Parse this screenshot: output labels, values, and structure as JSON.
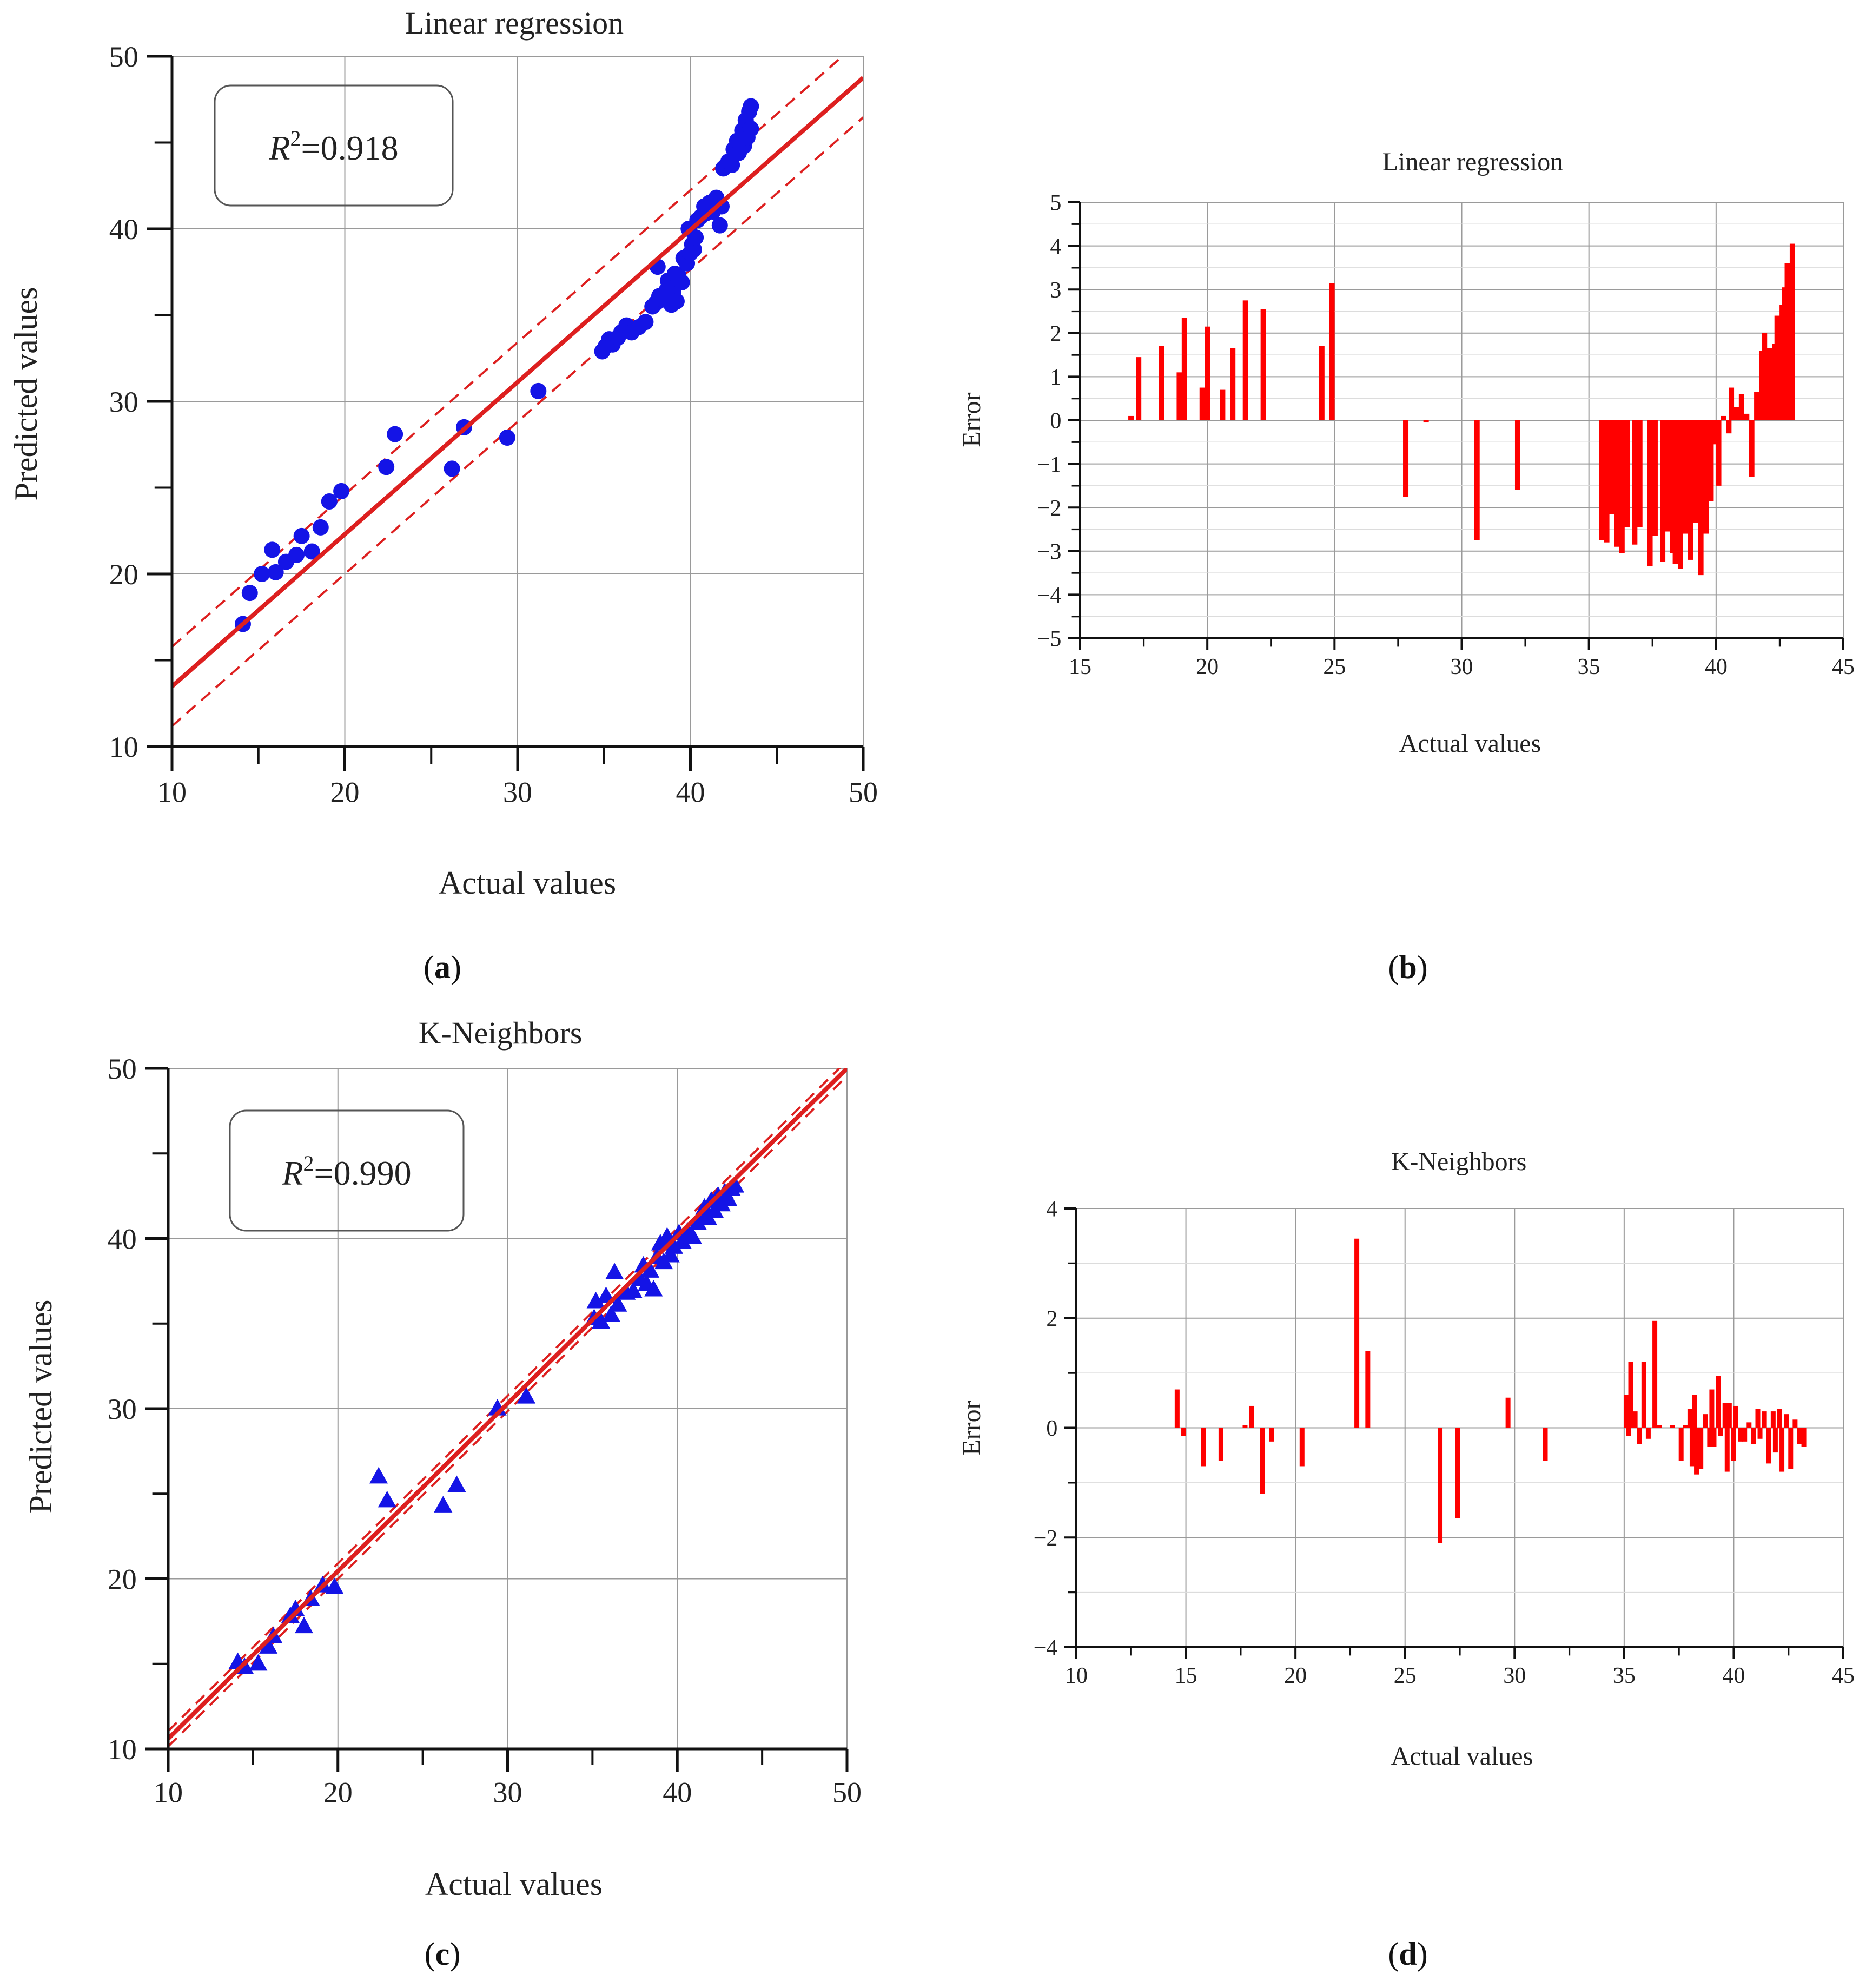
{
  "colors": {
    "axis": "#111111",
    "grid": "#9a9a9a",
    "grid_light": "#dcdcdc",
    "fit": "#dd1f1f",
    "band": "#dd1f1f",
    "point": "#1414e6",
    "bar": "#ff0000",
    "box": "#555555"
  },
  "chart_data": [
    {
      "panel": "a",
      "type": "scatter",
      "marker": "circle",
      "title": "Linear regression",
      "xlabel": "Actual values",
      "ylabel": "Predicted values",
      "xlim": [
        10,
        50
      ],
      "ylim": [
        10,
        50
      ],
      "xticks": [
        10,
        20,
        30,
        40,
        50
      ],
      "yticks": [
        10,
        20,
        30,
        40,
        50
      ],
      "grid": true,
      "r2": {
        "prefix": "R",
        "sup": "2",
        "value": "=0.918"
      },
      "fit_line": {
        "slope": 0.882,
        "intercept": 4.66
      },
      "band_offset": 2.3,
      "points": [
        [
          14.1,
          17.1
        ],
        [
          14.5,
          18.9
        ],
        [
          15.2,
          20.0
        ],
        [
          15.8,
          21.4
        ],
        [
          16.0,
          20.1
        ],
        [
          16.6,
          20.7
        ],
        [
          17.2,
          21.1
        ],
        [
          17.5,
          22.2
        ],
        [
          18.1,
          21.3
        ],
        [
          18.6,
          22.7
        ],
        [
          19.1,
          24.2
        ],
        [
          19.8,
          24.8
        ],
        [
          22.4,
          26.2
        ],
        [
          22.9,
          28.1
        ],
        [
          26.2,
          26.1
        ],
        [
          26.9,
          28.5
        ],
        [
          29.4,
          27.9
        ],
        [
          31.2,
          30.6
        ],
        [
          34.9,
          32.9
        ],
        [
          35.1,
          33.2
        ],
        [
          35.3,
          33.6
        ],
        [
          35.5,
          33.3
        ],
        [
          35.8,
          33.7
        ],
        [
          36.0,
          34.0
        ],
        [
          36.3,
          34.4
        ],
        [
          36.6,
          34.0
        ],
        [
          37.0,
          34.3
        ],
        [
          37.4,
          34.6
        ],
        [
          37.8,
          35.5
        ],
        [
          38.0,
          35.7
        ],
        [
          38.1,
          37.8
        ],
        [
          38.2,
          36.1
        ],
        [
          38.4,
          35.9
        ],
        [
          38.6,
          36.4
        ],
        [
          38.7,
          37.0
        ],
        [
          38.9,
          35.6
        ],
        [
          39.0,
          36.3
        ],
        [
          39.1,
          37.4
        ],
        [
          39.2,
          35.8
        ],
        [
          39.3,
          37.3
        ],
        [
          39.5,
          36.9
        ],
        [
          39.6,
          38.3
        ],
        [
          39.8,
          38.0
        ],
        [
          39.9,
          40.0
        ],
        [
          40.0,
          38.6
        ],
        [
          40.1,
          39.1
        ],
        [
          40.2,
          38.8
        ],
        [
          40.3,
          39.5
        ],
        [
          40.4,
          40.5
        ],
        [
          40.6,
          40.7
        ],
        [
          40.8,
          41.3
        ],
        [
          40.9,
          40.9
        ],
        [
          41.1,
          41.5
        ],
        [
          41.3,
          41.0
        ],
        [
          41.5,
          41.8
        ],
        [
          41.7,
          40.2
        ],
        [
          41.8,
          41.3
        ],
        [
          41.9,
          43.5
        ],
        [
          42.0,
          43.6
        ],
        [
          42.2,
          43.9
        ],
        [
          42.4,
          43.7
        ],
        [
          42.5,
          44.6
        ],
        [
          42.7,
          45.1
        ],
        [
          42.8,
          44.4
        ],
        [
          43.0,
          45.7
        ],
        [
          43.1,
          44.8
        ],
        [
          43.2,
          46.3
        ],
        [
          43.3,
          45.3
        ],
        [
          43.4,
          46.8
        ],
        [
          43.5,
          47.1
        ],
        [
          43.5,
          45.8
        ]
      ]
    },
    {
      "panel": "b",
      "type": "bar",
      "title": "Linear regression",
      "xlabel": "Actual values",
      "ylabel": "Error",
      "xlim": [
        15,
        45
      ],
      "ylim": [
        -5,
        5
      ],
      "xticks": [
        15,
        20,
        25,
        30,
        35,
        40,
        45
      ],
      "yticks": [
        5,
        4,
        3,
        2,
        1,
        0,
        -1,
        -2,
        -3,
        -4,
        -5
      ],
      "grid": true,
      "bars": [
        [
          17.0,
          0.1
        ],
        [
          17.3,
          1.45
        ],
        [
          18.2,
          1.7
        ],
        [
          18.9,
          1.1
        ],
        [
          19.1,
          2.35
        ],
        [
          19.8,
          0.75
        ],
        [
          20.0,
          2.15
        ],
        [
          20.6,
          0.7
        ],
        [
          21.0,
          1.65
        ],
        [
          21.5,
          2.75
        ],
        [
          22.2,
          2.55
        ],
        [
          24.5,
          1.7
        ],
        [
          24.9,
          3.15
        ],
        [
          27.8,
          -1.75
        ],
        [
          28.6,
          -0.05
        ],
        [
          30.6,
          -2.75
        ],
        [
          32.2,
          -1.6
        ],
        [
          35.5,
          -2.75
        ],
        [
          35.7,
          -2.8
        ],
        [
          35.9,
          -2.15
        ],
        [
          36.1,
          -2.9
        ],
        [
          36.3,
          -3.05
        ],
        [
          36.5,
          -2.45
        ],
        [
          36.8,
          -2.85
        ],
        [
          37.0,
          -2.45
        ],
        [
          37.4,
          -3.35
        ],
        [
          37.6,
          -2.65
        ],
        [
          37.9,
          -3.25
        ],
        [
          38.1,
          -2.55
        ],
        [
          38.3,
          -3.05
        ],
        [
          38.4,
          -3.3
        ],
        [
          38.6,
          -3.4
        ],
        [
          38.8,
          -2.6
        ],
        [
          39.0,
          -3.2
        ],
        [
          39.2,
          -2.35
        ],
        [
          39.4,
          -3.55
        ],
        [
          39.6,
          -2.6
        ],
        [
          39.8,
          -1.85
        ],
        [
          39.9,
          -0.55
        ],
        [
          40.1,
          -1.5
        ],
        [
          40.3,
          0.1
        ],
        [
          40.5,
          -0.3
        ],
        [
          40.6,
          0.75
        ],
        [
          40.8,
          0.3
        ],
        [
          41.0,
          0.6
        ],
        [
          41.2,
          0.15
        ],
        [
          41.4,
          -1.3
        ],
        [
          41.6,
          0.65
        ],
        [
          41.8,
          1.6
        ],
        [
          41.9,
          2.0
        ],
        [
          42.0,
          1.55
        ],
        [
          42.1,
          1.65
        ],
        [
          42.3,
          1.75
        ],
        [
          42.4,
          2.4
        ],
        [
          42.5,
          1.8
        ],
        [
          42.6,
          2.65
        ],
        [
          42.7,
          3.05
        ],
        [
          42.8,
          3.6
        ],
        [
          42.9,
          3.05
        ],
        [
          43.0,
          4.05
        ]
      ]
    },
    {
      "panel": "c",
      "type": "scatter",
      "marker": "triangle",
      "title": "K-Neighbors",
      "xlabel": "Actual values",
      "ylabel": "Predicted values",
      "xlim": [
        10,
        50
      ],
      "ylim": [
        10,
        50
      ],
      "xticks": [
        10,
        20,
        30,
        40,
        50
      ],
      "yticks": [
        10,
        20,
        30,
        40,
        50
      ],
      "grid": true,
      "r2": {
        "prefix": "R",
        "sup": "2",
        "value": "=0.990"
      },
      "fit_line": {
        "slope": 0.985,
        "intercept": 0.75
      },
      "band_offset": 0.45,
      "points": [
        [
          14.1,
          15.1
        ],
        [
          14.5,
          14.8
        ],
        [
          15.3,
          15.0
        ],
        [
          15.9,
          16.0
        ],
        [
          16.2,
          16.6
        ],
        [
          17.2,
          17.8
        ],
        [
          17.5,
          18.2
        ],
        [
          18.0,
          17.2
        ],
        [
          18.4,
          18.8
        ],
        [
          19.1,
          19.6
        ],
        [
          19.8,
          19.5
        ],
        [
          22.4,
          26.0
        ],
        [
          22.9,
          24.6
        ],
        [
          26.2,
          24.3
        ],
        [
          27.0,
          25.5
        ],
        [
          29.4,
          30.0
        ],
        [
          31.1,
          30.7
        ],
        [
          35.1,
          35.3
        ],
        [
          35.2,
          36.3
        ],
        [
          35.5,
          35.1
        ],
        [
          35.8,
          36.6
        ],
        [
          36.1,
          35.5
        ],
        [
          36.3,
          38.0
        ],
        [
          36.5,
          36.1
        ],
        [
          37.0,
          36.8
        ],
        [
          37.4,
          36.9
        ],
        [
          37.8,
          37.6
        ],
        [
          38.0,
          38.4
        ],
        [
          38.2,
          37.3
        ],
        [
          38.4,
          38.1
        ],
        [
          38.6,
          37.0
        ],
        [
          38.8,
          38.9
        ],
        [
          39.0,
          39.7
        ],
        [
          39.2,
          38.6
        ],
        [
          39.4,
          40.1
        ],
        [
          39.6,
          39.0
        ],
        [
          39.8,
          39.5
        ],
        [
          40.1,
          40.3
        ],
        [
          40.3,
          39.8
        ],
        [
          40.6,
          40.4
        ],
        [
          40.9,
          40.1
        ],
        [
          41.2,
          40.9
        ],
        [
          41.4,
          41.3
        ],
        [
          41.6,
          41.8
        ],
        [
          41.8,
          41.2
        ],
        [
          42.0,
          42.2
        ],
        [
          42.2,
          41.6
        ],
        [
          42.4,
          42.5
        ],
        [
          42.6,
          42.0
        ],
        [
          42.8,
          42.7
        ],
        [
          43.0,
          42.3
        ],
        [
          43.2,
          42.9
        ],
        [
          43.4,
          43.1
        ]
      ]
    },
    {
      "panel": "d",
      "type": "bar",
      "title": "K-Neighbors",
      "xlabel": "Actual values",
      "ylabel": "Error",
      "xlim": [
        10,
        45
      ],
      "ylim": [
        -4,
        4
      ],
      "xticks": [
        10,
        15,
        20,
        25,
        30,
        35,
        40,
        45
      ],
      "yticks": [
        4,
        2,
        0,
        -2,
        -4
      ],
      "grid": true,
      "bars": [
        [
          14.6,
          0.7
        ],
        [
          14.9,
          -0.15
        ],
        [
          15.8,
          -0.7
        ],
        [
          16.6,
          -0.6
        ],
        [
          17.7,
          0.05
        ],
        [
          18.0,
          0.4
        ],
        [
          18.5,
          -1.2
        ],
        [
          18.9,
          -0.25
        ],
        [
          20.3,
          -0.7
        ],
        [
          22.8,
          3.45
        ],
        [
          23.3,
          1.4
        ],
        [
          26.6,
          -2.1
        ],
        [
          27.4,
          -1.65
        ],
        [
          29.7,
          0.55
        ],
        [
          31.4,
          -0.6
        ],
        [
          35.1,
          0.6
        ],
        [
          35.2,
          -0.15
        ],
        [
          35.3,
          1.2
        ],
        [
          35.5,
          0.3
        ],
        [
          35.7,
          -0.3
        ],
        [
          35.9,
          1.2
        ],
        [
          36.1,
          -0.2
        ],
        [
          36.4,
          1.95
        ],
        [
          36.6,
          0.05
        ],
        [
          37.2,
          0.05
        ],
        [
          37.6,
          -0.6
        ],
        [
          37.8,
          0.05
        ],
        [
          38.0,
          0.35
        ],
        [
          38.1,
          -0.7
        ],
        [
          38.2,
          0.6
        ],
        [
          38.3,
          -0.85
        ],
        [
          38.5,
          -0.75
        ],
        [
          38.7,
          0.25
        ],
        [
          38.9,
          -0.35
        ],
        [
          39.0,
          0.7
        ],
        [
          39.1,
          -0.35
        ],
        [
          39.3,
          0.95
        ],
        [
          39.4,
          -0.15
        ],
        [
          39.6,
          0.45
        ],
        [
          39.7,
          -0.8
        ],
        [
          39.8,
          0.45
        ],
        [
          40.0,
          -0.6
        ],
        [
          40.1,
          0.4
        ],
        [
          40.3,
          -0.25
        ],
        [
          40.5,
          -0.25
        ],
        [
          40.7,
          0.1
        ],
        [
          40.9,
          -0.3
        ],
        [
          41.1,
          0.35
        ],
        [
          41.2,
          -0.2
        ],
        [
          41.4,
          0.3
        ],
        [
          41.6,
          -0.65
        ],
        [
          41.8,
          0.3
        ],
        [
          41.9,
          -0.45
        ],
        [
          42.1,
          0.35
        ],
        [
          42.2,
          -0.8
        ],
        [
          42.4,
          0.25
        ],
        [
          42.6,
          -0.75
        ],
        [
          42.8,
          0.15
        ],
        [
          43.0,
          -0.3
        ],
        [
          43.2,
          -0.35
        ]
      ]
    }
  ],
  "panel_labels": [
    "(a)",
    "(b)",
    "(c)",
    "(d)"
  ]
}
